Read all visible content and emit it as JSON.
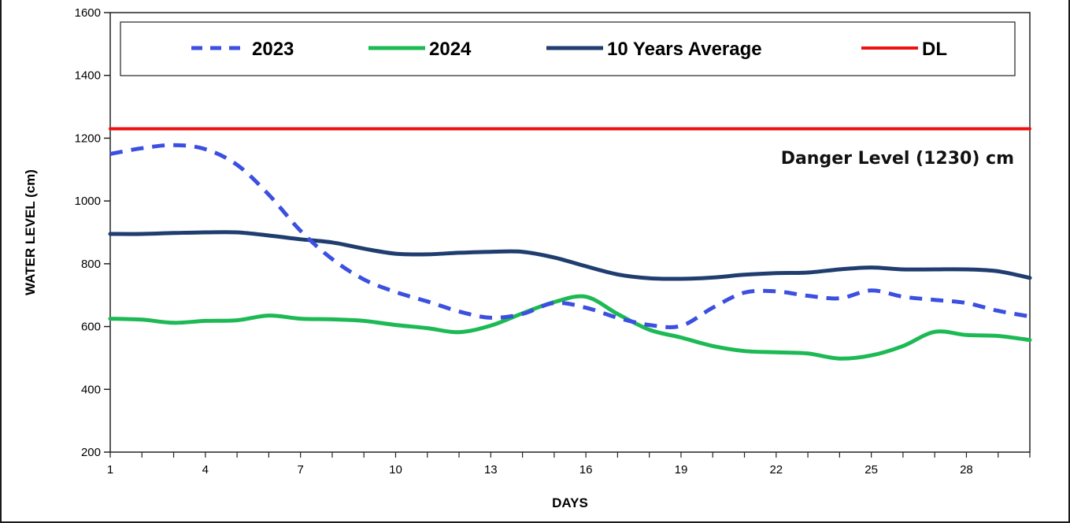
{
  "chart_data": {
    "type": "line",
    "xlabel": "DAYS",
    "ylabel": "WATER LEVEL (cm)",
    "xlim": [
      1,
      30
    ],
    "ylim": [
      200,
      1600
    ],
    "x_ticks": [
      1,
      4,
      7,
      10,
      13,
      16,
      19,
      22,
      25,
      28
    ],
    "y_ticks": [
      200,
      400,
      600,
      800,
      1000,
      1200,
      1400,
      1600
    ],
    "grid": false,
    "legend_position": "top",
    "x": [
      1,
      2,
      3,
      4,
      5,
      6,
      7,
      8,
      9,
      10,
      11,
      12,
      13,
      14,
      15,
      16,
      17,
      18,
      19,
      20,
      21,
      22,
      23,
      24,
      25,
      26,
      27,
      28,
      29,
      30
    ],
    "series": [
      {
        "name": "2023",
        "color": "#3b4fe0",
        "style": "dashed",
        "values": [
          1150,
          1168,
          1178,
          1165,
          1115,
          1020,
          905,
          815,
          750,
          710,
          680,
          648,
          628,
          640,
          675,
          660,
          628,
          605,
          602,
          660,
          708,
          712,
          698,
          690,
          715,
          695,
          685,
          675,
          650,
          632
        ]
      },
      {
        "name": "2024",
        "color": "#1db954",
        "style": "solid",
        "values": [
          625,
          622,
          612,
          618,
          620,
          635,
          625,
          623,
          618,
          605,
          595,
          582,
          603,
          642,
          678,
          695,
          640,
          590,
          565,
          538,
          522,
          518,
          514,
          498,
          508,
          538,
          583,
          573,
          570,
          557
        ]
      },
      {
        "name": "10 Years Average",
        "color": "#1f3d6e",
        "style": "solid",
        "values": [
          895,
          895,
          898,
          900,
          900,
          890,
          878,
          868,
          848,
          832,
          830,
          835,
          838,
          838,
          820,
          792,
          766,
          754,
          752,
          756,
          765,
          770,
          772,
          782,
          788,
          782,
          782,
          782,
          776,
          755
        ]
      },
      {
        "name": "DL",
        "color": "#ee1111",
        "style": "solid",
        "values": [
          1230,
          1230,
          1230,
          1230,
          1230,
          1230,
          1230,
          1230,
          1230,
          1230,
          1230,
          1230,
          1230,
          1230,
          1230,
          1230,
          1230,
          1230,
          1230,
          1230,
          1230,
          1230,
          1230,
          1230,
          1230,
          1230,
          1230,
          1230,
          1230,
          1230
        ]
      }
    ],
    "annotations": [
      "Danger Level (1230) cm"
    ]
  }
}
